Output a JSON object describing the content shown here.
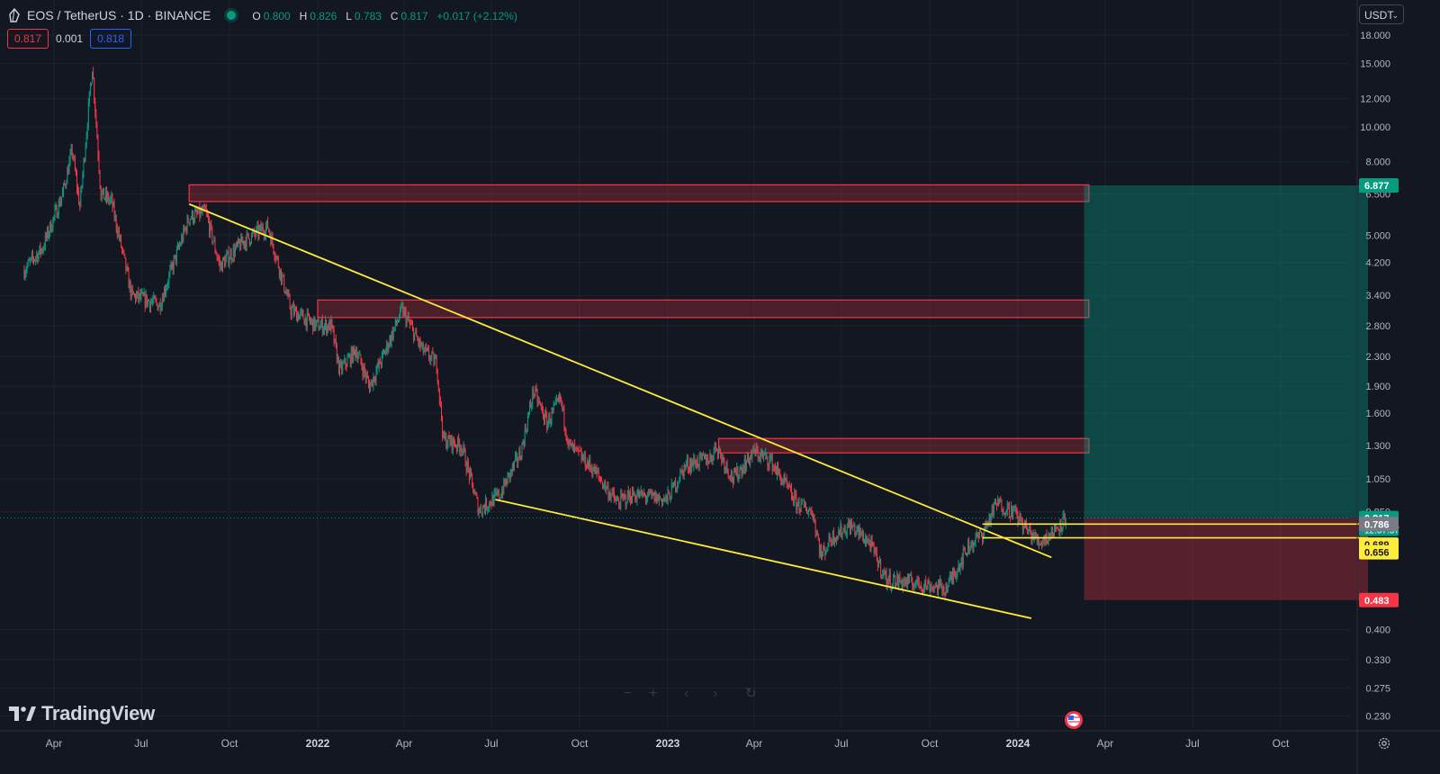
{
  "header": {
    "title": "EOS / TetherUS · 1D · BINANCE",
    "ohlc": [
      {
        "k": "O",
        "v": "0.800"
      },
      {
        "k": "H",
        "v": "0.826"
      },
      {
        "k": "L",
        "v": "0.783"
      },
      {
        "k": "C",
        "v": "0.817"
      },
      {
        "k": "",
        "v": "+0.017 (+2.12%)"
      }
    ],
    "bid": "0.817",
    "spread": "0.001",
    "ask": "0.818",
    "currency": "USDT",
    "currency_chevron": "⌄"
  },
  "branding": {
    "name": "TradingView"
  },
  "icons": [
    "eos-logo-icon",
    "live-dot-icon",
    "tradingview-logo-icon",
    "us-flag-icon",
    "settings-gear-icon",
    "zoom-out-icon",
    "zoom-in-icon",
    "scroll-left-icon",
    "scroll-right-icon",
    "reset-icon"
  ],
  "colors": {
    "background": "#131722",
    "grid": "#1e222d",
    "text": "#b2b5be",
    "up": "#089981",
    "down": "#f23645",
    "trendline": "#ffeb3b",
    "zone_fill": "rgba(242,54,69,0.25)",
    "zone_border": "#f23645",
    "target_fill": "rgba(8,153,129,0.38)",
    "stop_fill": "rgba(242,54,69,0.30)"
  },
  "chart_data": {
    "type": "candlestick",
    "y_scale": "log",
    "ylim": [
      0.2,
      20
    ],
    "y_ticks": [
      "18.000",
      "15.000",
      "12.000",
      "10.000",
      "8.000",
      "6.500",
      "5.000",
      "4.200",
      "3.400",
      "2.800",
      "2.300",
      "1.900",
      "1.600",
      "1.300",
      "1.050",
      "0.850",
      "0.400",
      "0.330",
      "0.275",
      "0.230"
    ],
    "x_ticks": [
      "Apr",
      "Jul",
      "Oct",
      "2022",
      "Apr",
      "Jul",
      "Oct",
      "2023",
      "Apr",
      "Jul",
      "Oct",
      "2024",
      "Apr",
      "Jul",
      "Oct"
    ],
    "price_path": [
      [
        "2021-03-01",
        4.0
      ],
      [
        "2021-03-20",
        4.6
      ],
      [
        "2021-04-10",
        6.5
      ],
      [
        "2021-04-20",
        8.6
      ],
      [
        "2021-04-28",
        6.0
      ],
      [
        "2021-05-11",
        14.8
      ],
      [
        "2021-05-20",
        6.5
      ],
      [
        "2021-05-31",
        6.2
      ],
      [
        "2021-06-21",
        3.4
      ],
      [
        "2021-07-20",
        3.2
      ],
      [
        "2021-08-20",
        5.6
      ],
      [
        "2021-09-06",
        5.8
      ],
      [
        "2021-09-21",
        4.1
      ],
      [
        "2021-10-15",
        4.8
      ],
      [
        "2021-11-10",
        5.3
      ],
      [
        "2021-12-04",
        3.1
      ],
      [
        "2021-12-31",
        2.8
      ],
      [
        "2022-01-15",
        2.8
      ],
      [
        "2022-01-24",
        2.1
      ],
      [
        "2022-02-10",
        2.4
      ],
      [
        "2022-02-24",
        1.9
      ],
      [
        "2022-03-10",
        2.3
      ],
      [
        "2022-03-30",
        3.1
      ],
      [
        "2022-04-20",
        2.4
      ],
      [
        "2022-05-05",
        2.2
      ],
      [
        "2022-05-12",
        1.35
      ],
      [
        "2022-05-31",
        1.3
      ],
      [
        "2022-06-18",
        0.86
      ],
      [
        "2022-07-10",
        0.95
      ],
      [
        "2022-08-01",
        1.25
      ],
      [
        "2022-08-14",
        1.85
      ],
      [
        "2022-08-28",
        1.5
      ],
      [
        "2022-09-11",
        1.75
      ],
      [
        "2022-09-20",
        1.3
      ],
      [
        "2022-10-15",
        1.12
      ],
      [
        "2022-11-09",
        0.9
      ],
      [
        "2022-11-25",
        0.95
      ],
      [
        "2022-12-31",
        0.92
      ],
      [
        "2023-01-20",
        1.15
      ],
      [
        "2023-02-15",
        1.2
      ],
      [
        "2023-02-20",
        1.3
      ],
      [
        "2023-03-10",
        1.05
      ],
      [
        "2023-04-01",
        1.25
      ],
      [
        "2023-04-18",
        1.18
      ],
      [
        "2023-05-15",
        0.9
      ],
      [
        "2023-06-01",
        0.85
      ],
      [
        "2023-06-10",
        0.64
      ],
      [
        "2023-06-20",
        0.72
      ],
      [
        "2023-07-10",
        0.78
      ],
      [
        "2023-07-30",
        0.7
      ],
      [
        "2023-08-17",
        0.55
      ],
      [
        "2023-09-15",
        0.54
      ],
      [
        "2023-10-18",
        0.52
      ],
      [
        "2023-11-10",
        0.68
      ],
      [
        "2023-11-25",
        0.74
      ],
      [
        "2023-12-10",
        0.9
      ],
      [
        "2023-12-28",
        0.85
      ],
      [
        "2024-01-10",
        0.76
      ],
      [
        "2024-01-23",
        0.7
      ],
      [
        "2024-02-05",
        0.74
      ],
      [
        "2024-02-16",
        0.8
      ],
      [
        "2024-02-20",
        0.817
      ]
    ],
    "price_labels": [
      {
        "text": "6.877",
        "value": 6.877,
        "bg": "#089981",
        "fg": "#ffffff"
      },
      {
        "text": "0.817",
        "sub": "12:37:57",
        "value": 0.817,
        "bg": "#089981",
        "fg": "#ffffff"
      },
      {
        "text": "0.786",
        "value": 0.786,
        "bg": "#787b86",
        "fg": "#ffffff"
      },
      {
        "text": "0.689",
        "value": 0.689,
        "bg": "#ffeb3b",
        "fg": "#131722"
      },
      {
        "text": "0.656",
        "value": 0.656,
        "bg": "#ffeb3b",
        "fg": "#131722"
      },
      {
        "text": "0.483",
        "value": 0.483,
        "bg": "#f23645",
        "fg": "#ffffff"
      }
    ],
    "resistance_zones": [
      {
        "from": "2021-08-20",
        "to": "2024-03-15",
        "low": 6.2,
        "high": 6.9
      },
      {
        "from": "2022-01-01",
        "to": "2024-03-15",
        "low": 2.95,
        "high": 3.3
      },
      {
        "from": "2023-02-23",
        "to": "2024-03-15",
        "low": 1.24,
        "high": 1.36
      }
    ],
    "trendlines": [
      {
        "from": [
          "2021-08-20",
          6.1
        ],
        "to": [
          "2024-02-05",
          0.635
        ]
      },
      {
        "from": [
          "2022-07-05",
          0.92
        ],
        "to": [
          "2024-01-15",
          0.43
        ]
      },
      {
        "from": [
          "2023-11-25",
          0.786
        ],
        "to": [
          "2024-12-31",
          0.786
        ]
      },
      {
        "from": [
          "2023-11-25",
          0.72
        ],
        "to": [
          "2024-12-31",
          0.72
        ]
      }
    ],
    "position": {
      "entry": 0.817,
      "target": 6.877,
      "stop": 0.483,
      "from": "2024-03-10",
      "to": "2024-12-31"
    }
  }
}
